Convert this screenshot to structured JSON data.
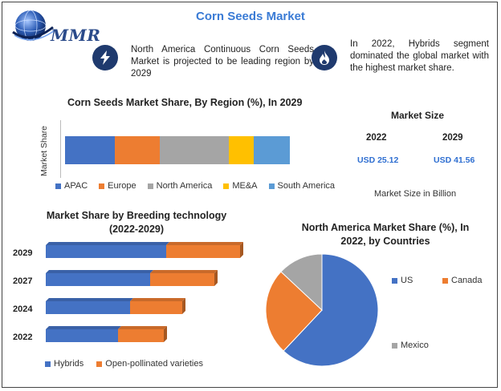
{
  "header": {
    "title": "Corn Seeds Market",
    "logo_text": "MMR"
  },
  "callouts": [
    {
      "icon": "lightning-icon",
      "text": "North America Continuous Corn Seeds Market is projected to be leading region by 2029"
    },
    {
      "icon": "flame-icon",
      "text": "In 2022, Hybrids segment dominated the global market with the highest market share."
    }
  ],
  "colors": {
    "apac": "#4472c4",
    "europe": "#ed7d31",
    "north_america": "#a5a5a5",
    "mea": "#ffc000",
    "south_america": "#5b9bd5",
    "accent_blue": "#2f6fd1",
    "icon_bg": "#1f3a6e"
  },
  "market_size": {
    "title": "Market Size",
    "years": [
      "2022",
      "2029"
    ],
    "values": [
      "USD 25.12",
      "USD 41.56"
    ],
    "note": "Market Size in Billion"
  },
  "chart_data": [
    {
      "type": "bar",
      "orientation": "horizontal-stacked",
      "title": "Corn Seeds Market Share, By Region (%), In 2029",
      "ylabel": "Market Share",
      "legend_position": "bottom",
      "series": [
        {
          "name": "APAC",
          "values": [
            22
          ],
          "color": "#4472c4"
        },
        {
          "name": "Europe",
          "values": [
            20
          ],
          "color": "#ed7d31"
        },
        {
          "name": "North America",
          "values": [
            31
          ],
          "color": "#a5a5a5"
        },
        {
          "name": "ME&A",
          "values": [
            11
          ],
          "color": "#ffc000"
        },
        {
          "name": "South America",
          "values": [
            16
          ],
          "color": "#5b9bd5"
        }
      ]
    },
    {
      "type": "bar",
      "orientation": "horizontal-stacked",
      "title": "Market Share by Breeding technology (2022-2029)",
      "categories": [
        "2029",
        "2027",
        "2024",
        "2022"
      ],
      "legend_position": "bottom",
      "series": [
        {
          "name": "Hybrids",
          "values": [
            150,
            130,
            105,
            90
          ],
          "color": "#4472c4"
        },
        {
          "name": "Open-pollinated varieties",
          "values": [
            92,
            80,
            65,
            57
          ],
          "color": "#ed7d31"
        }
      ]
    },
    {
      "type": "pie",
      "title": "North America Market Share (%), In 2022, by Countries",
      "legend_position": "right",
      "series": [
        {
          "name": "US",
          "value": 62,
          "color": "#4472c4"
        },
        {
          "name": "Canada",
          "value": 25,
          "color": "#ed7d31"
        },
        {
          "name": "Mexico",
          "value": 13,
          "color": "#a5a5a5"
        }
      ]
    }
  ]
}
